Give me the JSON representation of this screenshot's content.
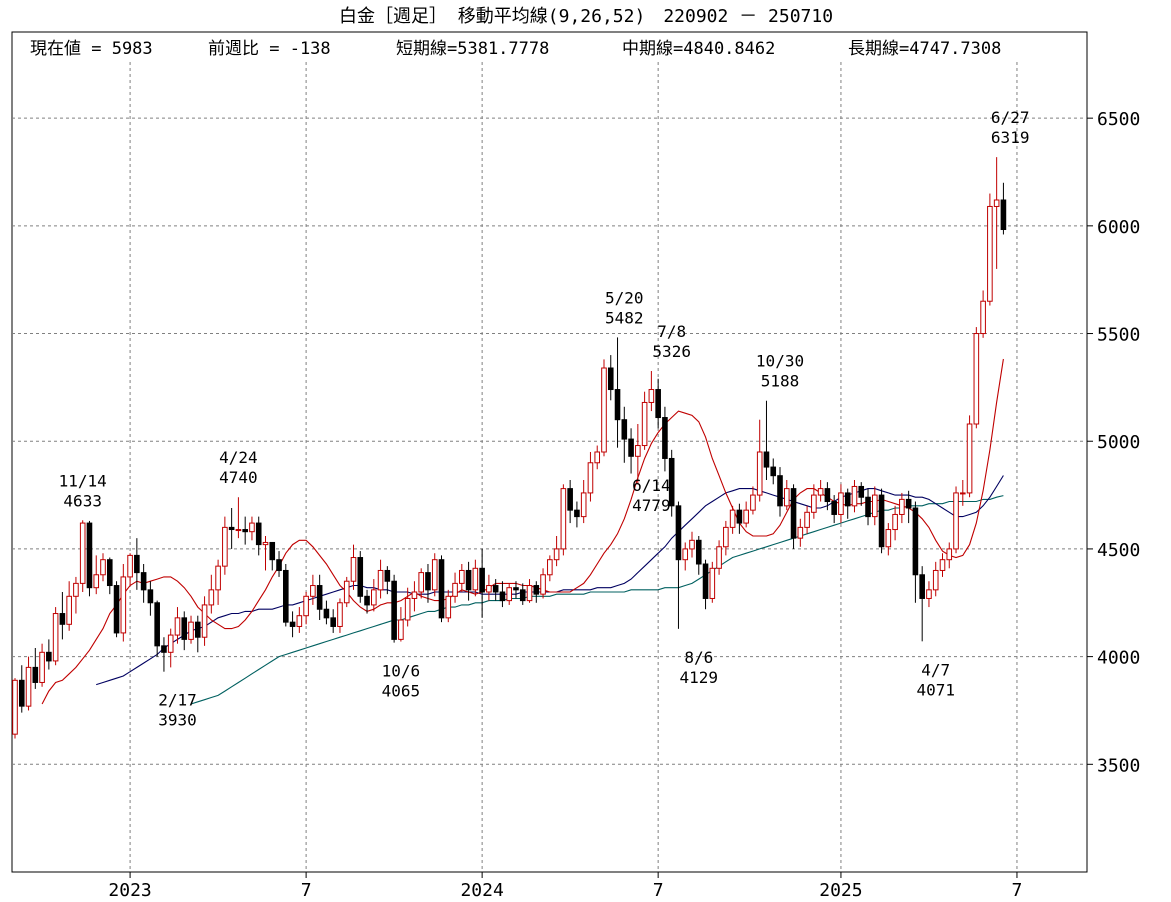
{
  "chart_data": {
    "type": "candlestick",
    "title": "白金［週足］ 移動平均線(9,26,52)　220902 － 250710",
    "info": {
      "current": "現在値 = 5983",
      "change": "前週比 = -138",
      "short": "短期線=5381.7778",
      "mid": "中期線=4840.8462",
      "long": "長期線=4747.7308"
    },
    "ylim": [
      3000,
      6900
    ],
    "y_ticks": [
      {
        "value": 3500,
        "label": "3500"
      },
      {
        "value": 4000,
        "label": "4000"
      },
      {
        "value": 4500,
        "label": "4500"
      },
      {
        "value": 5000,
        "label": "5000"
      },
      {
        "value": 5500,
        "label": "5500"
      },
      {
        "value": 6000,
        "label": "6000"
      },
      {
        "value": 6500,
        "label": "6500"
      }
    ],
    "x_ticks": [
      {
        "week": 17,
        "label": "2023"
      },
      {
        "week": 43,
        "label": "7"
      },
      {
        "week": 69,
        "label": "2024"
      },
      {
        "week": 95,
        "label": "7"
      },
      {
        "week": 122,
        "label": "2025"
      },
      {
        "week": 148,
        "label": "7"
      }
    ],
    "grid": true,
    "series_colors": {
      "short": "#c00000",
      "mid": "#000060",
      "long": "#006060",
      "up": "#c00000",
      "down": "#000000"
    },
    "annotations": [
      {
        "week": 10,
        "price": 4633,
        "date": "11/14",
        "value": "4633",
        "pos": "above"
      },
      {
        "week": 24,
        "price": 3930,
        "date": "2/17",
        "value": "3930",
        "pos": "below"
      },
      {
        "week": 33,
        "price": 4740,
        "date": "4/24",
        "value": "4740",
        "pos": "above"
      },
      {
        "week": 57,
        "price": 4065,
        "date": "10/6",
        "value": "4065",
        "pos": "below"
      },
      {
        "week": 90,
        "price": 5482,
        "date": "5/20",
        "value": "5482",
        "pos": "above"
      },
      {
        "week": 94,
        "price": 4779,
        "date": "6/14",
        "value": "4779",
        "pos": "mid"
      },
      {
        "week": 97,
        "price": 5326,
        "date": "7/8",
        "value": "5326",
        "pos": "above"
      },
      {
        "week": 101,
        "price": 4129,
        "date": "8/6",
        "value": "4129",
        "pos": "below"
      },
      {
        "week": 113,
        "price": 5188,
        "date": "10/30",
        "value": "5188",
        "pos": "above"
      },
      {
        "week": 136,
        "price": 4071,
        "date": "4/7",
        "value": "4071",
        "pos": "below"
      },
      {
        "week": 147,
        "price": 6319,
        "date": "6/27",
        "value": "6319",
        "pos": "above"
      }
    ],
    "candles": [
      [
        3640,
        3890,
        3620,
        3900
      ],
      [
        3890,
        3770,
        3740,
        3960
      ],
      [
        3770,
        3950,
        3750,
        4000
      ],
      [
        3950,
        3880,
        3850,
        4040
      ],
      [
        3880,
        4020,
        3860,
        4060
      ],
      [
        4020,
        3980,
        3940,
        4080
      ],
      [
        3980,
        4200,
        3960,
        4230
      ],
      [
        4200,
        4150,
        4080,
        4300
      ],
      [
        4150,
        4280,
        4120,
        4350
      ],
      [
        4280,
        4340,
        4200,
        4370
      ],
      [
        4340,
        4620,
        4300,
        4633
      ],
      [
        4620,
        4320,
        4280,
        4630
      ],
      [
        4320,
        4380,
        4290,
        4470
      ],
      [
        4380,
        4450,
        4350,
        4480
      ],
      [
        4450,
        4330,
        4290,
        4460
      ],
      [
        4330,
        4110,
        4090,
        4350
      ],
      [
        4110,
        4370,
        4070,
        4430
      ],
      [
        4370,
        4470,
        4330,
        4480
      ],
      [
        4470,
        4390,
        4310,
        4550
      ],
      [
        4390,
        4310,
        4250,
        4430
      ],
      [
        4310,
        4250,
        4190,
        4350
      ],
      [
        4250,
        4050,
        4000,
        4260
      ],
      [
        4050,
        4020,
        3930,
        4090
      ],
      [
        4020,
        4100,
        3950,
        4130
      ],
      [
        4100,
        4180,
        4060,
        4230
      ],
      [
        4180,
        4080,
        4030,
        4210
      ],
      [
        4080,
        4160,
        4060,
        4190
      ],
      [
        4160,
        4090,
        4020,
        4190
      ],
      [
        4090,
        4240,
        4050,
        4280
      ],
      [
        4240,
        4310,
        4200,
        4380
      ],
      [
        4310,
        4420,
        4240,
        4450
      ],
      [
        4420,
        4600,
        4380,
        4650
      ],
      [
        4600,
        4590,
        4500,
        4690
      ],
      [
        4590,
        4590,
        4550,
        4740
      ],
      [
        4590,
        4580,
        4520,
        4650
      ],
      [
        4580,
        4620,
        4540,
        4650
      ],
      [
        4620,
        4520,
        4470,
        4650
      ],
      [
        4520,
        4530,
        4400,
        4560
      ],
      [
        4530,
        4450,
        4400,
        4520
      ],
      [
        4450,
        4400,
        4370,
        4490
      ],
      [
        4400,
        4160,
        4140,
        4430
      ],
      [
        4160,
        4140,
        4090,
        4210
      ],
      [
        4140,
        4190,
        4110,
        4230
      ],
      [
        4190,
        4280,
        4150,
        4300
      ],
      [
        4280,
        4330,
        4240,
        4380
      ],
      [
        4330,
        4220,
        4170,
        4380
      ],
      [
        4220,
        4180,
        4150,
        4260
      ],
      [
        4180,
        4140,
        4110,
        4220
      ],
      [
        4140,
        4250,
        4110,
        4270
      ],
      [
        4250,
        4350,
        4230,
        4370
      ],
      [
        4350,
        4460,
        4310,
        4520
      ],
      [
        4460,
        4280,
        4250,
        4490
      ],
      [
        4280,
        4240,
        4200,
        4310
      ],
      [
        4240,
        4310,
        4210,
        4360
      ],
      [
        4310,
        4400,
        4270,
        4450
      ],
      [
        4400,
        4350,
        4290,
        4420
      ],
      [
        4350,
        4080,
        4065,
        4380
      ],
      [
        4080,
        4170,
        4070,
        4230
      ],
      [
        4170,
        4270,
        4140,
        4320
      ],
      [
        4270,
        4300,
        4210,
        4350
      ],
      [
        4300,
        4390,
        4270,
        4410
      ],
      [
        4390,
        4310,
        4250,
        4430
      ],
      [
        4310,
        4450,
        4280,
        4480
      ],
      [
        4450,
        4180,
        4160,
        4470
      ],
      [
        4180,
        4280,
        4160,
        4310
      ],
      [
        4280,
        4340,
        4250,
        4390
      ],
      [
        4340,
        4400,
        4300,
        4430
      ],
      [
        4400,
        4310,
        4260,
        4440
      ],
      [
        4310,
        4410,
        4280,
        4450
      ],
      [
        4410,
        4300,
        4180,
        4500
      ],
      [
        4300,
        4330,
        4260,
        4380
      ],
      [
        4330,
        4300,
        4260,
        4360
      ],
      [
        4300,
        4260,
        4230,
        4350
      ],
      [
        4260,
        4320,
        4240,
        4340
      ],
      [
        4320,
        4310,
        4270,
        4350
      ],
      [
        4310,
        4260,
        4240,
        4340
      ],
      [
        4260,
        4330,
        4250,
        4360
      ],
      [
        4330,
        4290,
        4250,
        4350
      ],
      [
        4290,
        4380,
        4270,
        4410
      ],
      [
        4380,
        4450,
        4350,
        4470
      ],
      [
        4450,
        4500,
        4420,
        4560
      ],
      [
        4500,
        4780,
        4470,
        4800
      ],
      [
        4780,
        4680,
        4620,
        4820
      ],
      [
        4680,
        4650,
        4600,
        4720
      ],
      [
        4650,
        4760,
        4620,
        4820
      ],
      [
        4760,
        4900,
        4720,
        4950
      ],
      [
        4900,
        4950,
        4870,
        4980
      ],
      [
        4950,
        5340,
        4930,
        5380
      ],
      [
        5340,
        5240,
        5190,
        5400
      ],
      [
        5240,
        5100,
        4970,
        5482
      ],
      [
        5100,
        5010,
        4900,
        5160
      ],
      [
        5010,
        4930,
        4850,
        5060
      ],
      [
        4930,
        4980,
        4800,
        5080
      ],
      [
        4980,
        5180,
        4960,
        5230
      ],
      [
        5180,
        5240,
        5140,
        5326
      ],
      [
        5240,
        5110,
        5060,
        5290
      ],
      [
        5110,
        4920,
        4860,
        5160
      ],
      [
        4920,
        4700,
        4650,
        4960
      ],
      [
        4700,
        4450,
        4129,
        4720
      ],
      [
        4450,
        4500,
        4400,
        4530
      ],
      [
        4500,
        4540,
        4460,
        4580
      ],
      [
        4540,
        4430,
        4380,
        4560
      ],
      [
        4430,
        4270,
        4220,
        4450
      ],
      [
        4270,
        4410,
        4250,
        4440
      ],
      [
        4410,
        4510,
        4380,
        4540
      ],
      [
        4510,
        4600,
        4470,
        4630
      ],
      [
        4600,
        4680,
        4570,
        4700
      ],
      [
        4680,
        4620,
        4570,
        4710
      ],
      [
        4620,
        4680,
        4600,
        4720
      ],
      [
        4680,
        4750,
        4660,
        4790
      ],
      [
        4750,
        4950,
        4720,
        5100
      ],
      [
        4950,
        4880,
        4820,
        5188
      ],
      [
        4880,
        4840,
        4800,
        4920
      ],
      [
        4840,
        4700,
        4650,
        4880
      ],
      [
        4700,
        4780,
        4680,
        4820
      ],
      [
        4780,
        4550,
        4500,
        4800
      ],
      [
        4550,
        4600,
        4510,
        4640
      ],
      [
        4600,
        4670,
        4570,
        4700
      ],
      [
        4670,
        4750,
        4640,
        4800
      ],
      [
        4750,
        4780,
        4720,
        4820
      ],
      [
        4780,
        4720,
        4680,
        4810
      ],
      [
        4720,
        4660,
        4620,
        4750
      ],
      [
        4660,
        4760,
        4620,
        4800
      ],
      [
        4760,
        4700,
        4640,
        4780
      ],
      [
        4700,
        4790,
        4670,
        4820
      ],
      [
        4790,
        4740,
        4700,
        4810
      ],
      [
        4740,
        4650,
        4610,
        4780
      ],
      [
        4650,
        4750,
        4610,
        4790
      ],
      [
        4750,
        4510,
        4480,
        4780
      ],
      [
        4510,
        4590,
        4470,
        4620
      ],
      [
        4590,
        4660,
        4540,
        4700
      ],
      [
        4660,
        4730,
        4620,
        4760
      ],
      [
        4730,
        4690,
        4620,
        4770
      ],
      [
        4690,
        4380,
        4250,
        4720
      ],
      [
        4380,
        4270,
        4071,
        4420
      ],
      [
        4270,
        4310,
        4230,
        4350
      ],
      [
        4310,
        4400,
        4280,
        4440
      ],
      [
        4400,
        4450,
        4370,
        4480
      ],
      [
        4450,
        4500,
        4410,
        4530
      ],
      [
        4500,
        4760,
        4480,
        4790
      ],
      [
        4760,
        4760,
        4700,
        4820
      ],
      [
        4760,
        5080,
        4740,
        5120
      ],
      [
        5080,
        5500,
        5060,
        5530
      ],
      [
        5500,
        5650,
        5480,
        5700
      ],
      [
        5650,
        6090,
        5630,
        6150
      ],
      [
        6090,
        6120,
        5800,
        6319
      ],
      [
        6120,
        5983,
        5960,
        6200
      ]
    ],
    "ma_short_values": [
      3780,
      3840,
      3880,
      3890,
      3920,
      3950,
      3990,
      4030,
      4080,
      4130,
      4200,
      4240,
      4290,
      4330,
      4350,
      4340,
      4350,
      4360,
      4370,
      4370,
      4350,
      4320,
      4280,
      4230,
      4200,
      4170,
      4150,
      4130,
      4130,
      4140,
      4170,
      4210,
      4260,
      4310,
      4370,
      4420,
      4480,
      4520,
      4540,
      4540,
      4510,
      4470,
      4430,
      4380,
      4330,
      4300,
      4260,
      4230,
      4210,
      4220,
      4240,
      4250,
      4250,
      4260,
      4280,
      4300,
      4280,
      4270,
      4260,
      4260,
      4270,
      4290,
      4310,
      4300,
      4290,
      4300,
      4320,
      4340,
      4340,
      4340,
      4340,
      4330,
      4330,
      4320,
      4310,
      4300,
      4300,
      4300,
      4300,
      4320,
      4340,
      4380,
      4430,
      4480,
      4520,
      4570,
      4640,
      4730,
      4830,
      4920,
      4990,
      5040,
      5080,
      5110,
      5140,
      5130,
      5120,
      5090,
      5020,
      4920,
      4840,
      4760,
      4690,
      4620,
      4580,
      4560,
      4560,
      4560,
      4570,
      4610,
      4670,
      4730,
      4760,
      4780,
      4780,
      4760,
      4740,
      4720,
      4710,
      4700,
      4710,
      4710,
      4720,
      4720,
      4730,
      4720,
      4710,
      4700,
      4690,
      4670,
      4640,
      4600,
      4540,
      4490,
      4470,
      4460,
      4470,
      4520,
      4620,
      4770,
      4960,
      5180,
      5381.7778
    ],
    "ma_mid_values": [
      3870,
      3880,
      3890,
      3900,
      3910,
      3930,
      3950,
      3970,
      3990,
      4010,
      4040,
      4060,
      4080,
      4100,
      4120,
      4130,
      4140,
      4160,
      4180,
      4190,
      4200,
      4200,
      4210,
      4210,
      4220,
      4220,
      4220,
      4230,
      4240,
      4240,
      4250,
      4260,
      4270,
      4280,
      4290,
      4300,
      4310,
      4320,
      4330,
      4330,
      4320,
      4320,
      4310,
      4310,
      4300,
      4300,
      4300,
      4290,
      4290,
      4290,
      4300,
      4300,
      4300,
      4300,
      4300,
      4300,
      4300,
      4290,
      4290,
      4290,
      4290,
      4290,
      4290,
      4300,
      4300,
      4300,
      4300,
      4300,
      4300,
      4310,
      4310,
      4310,
      4310,
      4310,
      4320,
      4320,
      4320,
      4330,
      4340,
      4360,
      4390,
      4420,
      4450,
      4480,
      4510,
      4550,
      4580,
      4610,
      4640,
      4670,
      4700,
      4720,
      4740,
      4760,
      4770,
      4780,
      4780,
      4780,
      4770,
      4760,
      4750,
      4740,
      4730,
      4720,
      4710,
      4700,
      4690,
      4690,
      4700,
      4720,
      4740,
      4750,
      4760,
      4770,
      4780,
      4780,
      4770,
      4760,
      4750,
      4750,
      4750,
      4740,
      4740,
      4730,
      4710,
      4690,
      4670,
      4650,
      4650,
      4660,
      4670,
      4700,
      4740,
      4790,
      4840.8462
    ],
    "ma_long_values": [
      3780,
      3790,
      3800,
      3810,
      3820,
      3840,
      3860,
      3880,
      3900,
      3920,
      3940,
      3960,
      3980,
      4000,
      4010,
      4020,
      4030,
      4040,
      4050,
      4060,
      4070,
      4080,
      4090,
      4100,
      4110,
      4120,
      4130,
      4140,
      4150,
      4160,
      4170,
      4170,
      4180,
      4190,
      4200,
      4210,
      4210,
      4220,
      4230,
      4230,
      4240,
      4240,
      4250,
      4250,
      4260,
      4260,
      4260,
      4270,
      4270,
      4270,
      4280,
      4280,
      4280,
      4280,
      4290,
      4290,
      4290,
      4290,
      4290,
      4300,
      4300,
      4300,
      4300,
      4300,
      4300,
      4310,
      4310,
      4310,
      4310,
      4310,
      4320,
      4320,
      4320,
      4330,
      4340,
      4360,
      4380,
      4400,
      4420,
      4440,
      4460,
      4470,
      4480,
      4490,
      4500,
      4510,
      4520,
      4530,
      4540,
      4550,
      4560,
      4570,
      4580,
      4590,
      4600,
      4610,
      4620,
      4630,
      4640,
      4650,
      4660,
      4670,
      4680,
      4680,
      4690,
      4690,
      4700,
      4700,
      4700,
      4710,
      4710,
      4710,
      4720,
      4720,
      4720,
      4720,
      4720,
      4730,
      4730,
      4740,
      4747.7308
    ]
  }
}
